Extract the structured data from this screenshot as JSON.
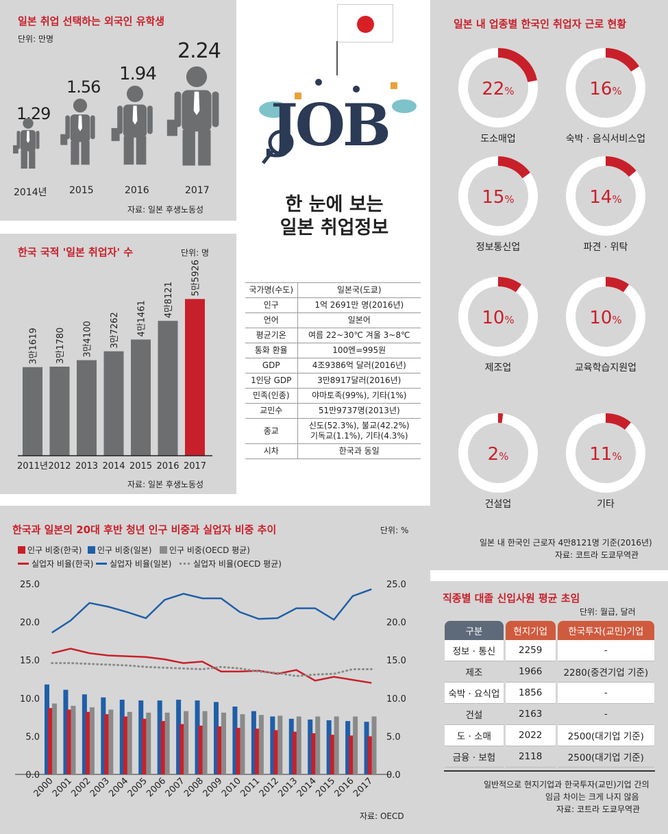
{
  "students": {
    "title": "일본 취업 선택하는 외국인 유학생",
    "unit": "단위: 만명",
    "source": "자료: 일본 후생노동성",
    "items": [
      {
        "year": "2014년",
        "value": "1.29"
      },
      {
        "year": "2015",
        "value": "1.56"
      },
      {
        "year": "2016",
        "value": "1.94"
      },
      {
        "year": "2017",
        "value": "2.24"
      }
    ]
  },
  "korean_workers": {
    "title": "한국 국적 '일본 취업자' 수",
    "unit": "단위: 명",
    "source": "자료: 일본 후생노동성",
    "colors": {
      "normal": "#6d6e70",
      "highlight": "#c8202a"
    }
  },
  "center": {
    "headline_line1": "한 눈에 보는",
    "headline_line2": "일본 취업정보",
    "job_text": "JOB",
    "info_rows": [
      {
        "k": "국가명(수도)",
        "v": "일본국(도쿄)"
      },
      {
        "k": "인구",
        "v": "1억 2691만 명(2016년)"
      },
      {
        "k": "언어",
        "v": "일본어"
      },
      {
        "k": "평균기온",
        "v": "여름 22~30℃ 겨울 3~8℃"
      },
      {
        "k": "통화 환율",
        "v": "100엔=995원"
      },
      {
        "k": "GDP",
        "v": "4조9386억 달러(2016년)"
      },
      {
        "k": "1인당 GDP",
        "v": "3만8917달러(2016년)"
      },
      {
        "k": "민족(인종)",
        "v": "야마토족(99%), 기타(1%)"
      },
      {
        "k": "교민수",
        "v": "51만9737명(2013년)"
      },
      {
        "k": "종교",
        "v": "신도(52.3%), 불교(42.2%)\n기독교(1.1%), 기타(4.3%)"
      },
      {
        "k": "시차",
        "v": "한국과 동일"
      }
    ]
  },
  "industry": {
    "title": "일본 내 업종별 한국인 취업자 근로 현황",
    "note1": "일본 내 한국인 근로자 4만8121명 기준(2016년)",
    "note2": "자료: 코트라 도쿄무역관",
    "items": [
      {
        "label": "도소매업",
        "pct": "22",
        "value": 22
      },
      {
        "label": "숙박 · 음식서비스업",
        "pct": "16",
        "value": 16
      },
      {
        "label": "정보통신업",
        "pct": "15",
        "value": 15
      },
      {
        "label": "파견 · 위탁",
        "pct": "14",
        "value": 14
      },
      {
        "label": "제조업",
        "pct": "10",
        "value": 10
      },
      {
        "label": "교육학습지원업",
        "pct": "10",
        "value": 10
      },
      {
        "label": "건설업",
        "pct": "2",
        "value": 2
      },
      {
        "label": "기타",
        "pct": "11",
        "value": 11
      }
    ],
    "pct_sign": "%"
  },
  "trend": {
    "title": "한국과 일본의 20대 후반 청년 인구 비중과 실업자 비중 추이",
    "unit": "단위: %",
    "source": "자료: OECD",
    "legend": {
      "kr_pop": "인구 비중(한국)",
      "jp_pop": "인구 비중(일본)",
      "oecd_pop": "인구 비중(OECD 평균)",
      "kr_unemp": "실업자 비율(한국)",
      "jp_unemp": "실업자 비율(일본)",
      "oecd_unemp": "실업자 비율(OECD 평균)"
    }
  },
  "salary": {
    "title": "직종별 대졸 신입사원 평균 초임",
    "unit": "단위: 월급, 달러",
    "headers": [
      "구분",
      "현지기업",
      "한국투자(교민)기업"
    ],
    "rows": [
      [
        "정보 · 통신",
        "2259",
        "-"
      ],
      [
        "제조",
        "1966",
        "2280(중견기업 기준)"
      ],
      [
        "숙박 · 요식업",
        "1856",
        "-"
      ],
      [
        "건설",
        "2163",
        "-"
      ],
      [
        "도 · 소매",
        "2022",
        "2500(대기업 기준)"
      ],
      [
        "금융 · 보험",
        "2118",
        "2500(대기업 기준)"
      ]
    ],
    "note1": "일반적으로 현지기업과 한국투자(교민)기업 간의",
    "note2": "임금 차이는 크게 나지 않음",
    "note3": "자료: 코트라 도쿄무역관"
  },
  "chart_data": [
    {
      "type": "bar",
      "title": "한국 국적 '일본 취업자' 수",
      "categories": [
        "2011년",
        "2012",
        "2013",
        "2014",
        "2015",
        "2016",
        "2017"
      ],
      "values": [
        31619,
        31780,
        34100,
        37262,
        41461,
        48121,
        55926
      ],
      "labels": [
        "3만1619",
        "3만1780",
        "3만4100",
        "3만7262",
        "4만1461",
        "4만8121",
        "5만5926"
      ],
      "highlight": "2017"
    },
    {
      "type": "bar",
      "title": "한국과 일본의 20대 후반 청년 인구 비중과 실업자 비중 추이",
      "categories": [
        "2000",
        "2001",
        "2002",
        "2003",
        "2004",
        "2005",
        "2006",
        "2007",
        "2008",
        "2009",
        "2010",
        "2011",
        "2012",
        "2013",
        "2014",
        "2015",
        "2016",
        "2017"
      ],
      "ylim": [
        0,
        25
      ],
      "yticks": [
        "0.0",
        "5.0",
        "10.0",
        "15.0",
        "20.0",
        "25.0"
      ],
      "series": [
        {
          "name": "인구 비중(한국)",
          "kind": "bar",
          "color": "#c8202a",
          "values": [
            8.7,
            8.5,
            8.2,
            7.9,
            7.6,
            7.3,
            7.0,
            6.6,
            6.4,
            6.3,
            6.1,
            6.0,
            5.8,
            5.6,
            5.4,
            5.2,
            5.1,
            5.0
          ]
        },
        {
          "name": "인구 비중(일본)",
          "kind": "bar",
          "color": "#1f5fa8",
          "values": [
            11.8,
            11.1,
            10.5,
            10.1,
            9.8,
            9.7,
            9.7,
            9.8,
            9.7,
            9.5,
            8.9,
            8.3,
            7.6,
            7.3,
            7.2,
            7.1,
            7.0,
            6.9
          ]
        },
        {
          "name": "인구 비중(OECD 평균)",
          "kind": "bar",
          "color": "#8a8a8a",
          "values": [
            9.3,
            9.0,
            8.8,
            8.5,
            8.2,
            8.1,
            8.1,
            8.3,
            8.3,
            8.1,
            7.9,
            7.8,
            7.7,
            7.6,
            7.6,
            7.6,
            7.6,
            7.6
          ]
        },
        {
          "name": "실업자 비율(한국)",
          "kind": "line",
          "color": "#c8202a",
          "values": [
            15.9,
            16.5,
            15.9,
            15.6,
            15.5,
            15.4,
            15.1,
            14.6,
            14.8,
            13.5,
            13.5,
            13.6,
            13.2,
            13.7,
            12.3,
            12.8,
            12.4,
            12.0
          ]
        },
        {
          "name": "실업자 비율(일본)",
          "kind": "line",
          "color": "#1f5fa8",
          "values": [
            18.6,
            20.2,
            22.5,
            22.0,
            21.3,
            20.5,
            22.9,
            23.7,
            23.1,
            23.1,
            21.3,
            20.4,
            20.5,
            21.8,
            21.8,
            20.3,
            23.4,
            24.3
          ]
        },
        {
          "name": "실업자 비율(OECD 평균)",
          "kind": "dotted",
          "color": "#8a8a8a",
          "values": [
            14.6,
            14.6,
            14.5,
            14.4,
            14.3,
            14.1,
            14.0,
            13.9,
            13.8,
            14.1,
            13.9,
            13.5,
            13.3,
            12.9,
            13.1,
            13.2,
            13.8,
            13.8
          ]
        }
      ]
    }
  ]
}
